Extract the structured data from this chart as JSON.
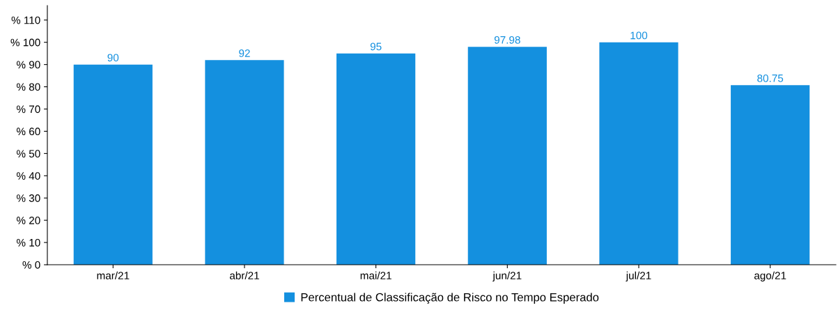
{
  "chart_data": {
    "type": "bar",
    "categories": [
      "mar/21",
      "abr/21",
      "mai/21",
      "jun/21",
      "jul/21",
      "ago/21"
    ],
    "series": [
      {
        "name": "Percentual de Classificação de Risco no Tempo Esperado",
        "color": "#1490df",
        "values": [
          90,
          92,
          95,
          97.98,
          100,
          80.75
        ]
      }
    ],
    "ylim": [
      0,
      116.5
    ],
    "yticks": [
      {
        "value": 0,
        "label": "% 0"
      },
      {
        "value": 10,
        "label": "% 10"
      },
      {
        "value": 20,
        "label": "% 20"
      },
      {
        "value": 30,
        "label": "% 30"
      },
      {
        "value": 40,
        "label": "% 40"
      },
      {
        "value": 50,
        "label": "% 50"
      },
      {
        "value": 60,
        "label": "% 60"
      },
      {
        "value": 70,
        "label": "% 70"
      },
      {
        "value": 80,
        "label": "% 80"
      },
      {
        "value": 90,
        "label": "% 90"
      },
      {
        "value": 100,
        "label": "% 100"
      },
      {
        "value": 110,
        "label": "% 110"
      }
    ],
    "data_labels": true,
    "grid": false,
    "legend": "bottom"
  }
}
